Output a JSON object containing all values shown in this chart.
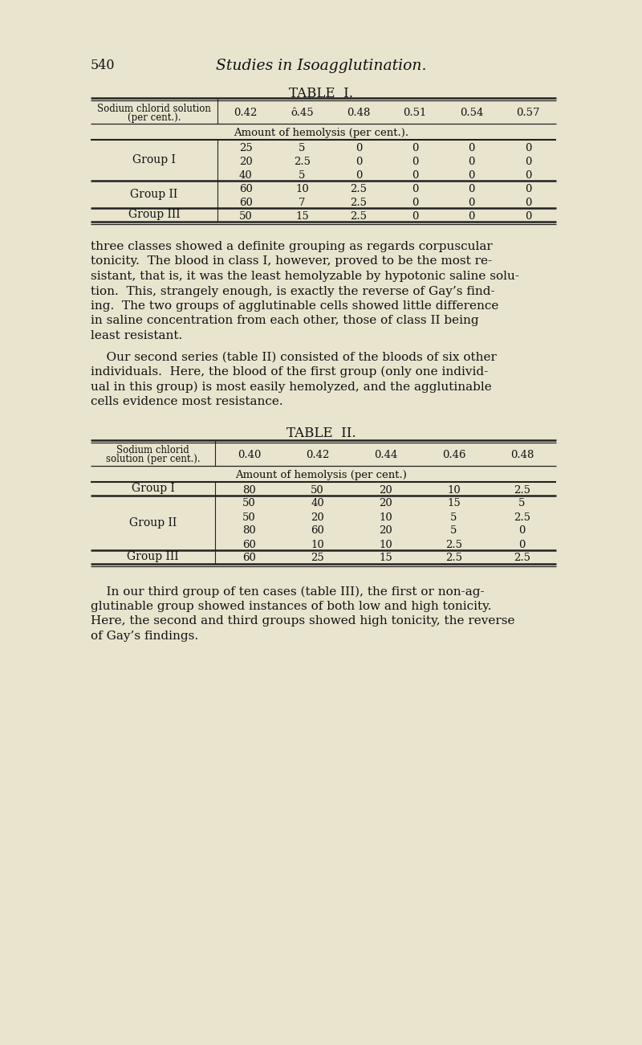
{
  "bg_color": "#e8e4ce",
  "page_num": "540",
  "page_title": "Studies in Isoagglutination.",
  "table1_title": "TABLE  I.",
  "table1_header_vals": [
    "0.42",
    "ô.45",
    "0.48",
    "0.51",
    "0.54",
    "0.57"
  ],
  "table1_subheader": "Amount of hemolysis (per cent.).",
  "table1_groups": [
    {
      "name": "Group I",
      "rows": [
        [
          "25",
          "5",
          "0",
          "0",
          "0",
          "0"
        ],
        [
          "20",
          "2.5",
          "0",
          "0",
          "0",
          "0"
        ],
        [
          "40",
          "5",
          "0",
          "0",
          "0",
          "0"
        ]
      ]
    },
    {
      "name": "Group II",
      "rows": [
        [
          "60",
          "10",
          "2.5",
          "0",
          "0",
          "0"
        ],
        [
          "60",
          "7",
          "2.5",
          "0",
          "0",
          "0"
        ]
      ]
    },
    {
      "name": "Group III",
      "rows": [
        [
          "50",
          "15",
          "2.5",
          "0",
          "0",
          "0"
        ]
      ]
    }
  ],
  "table2_title": "TABLE  II.",
  "table2_header_vals": [
    "0.40",
    "0.42",
    "0.44",
    "0.46",
    "0.48"
  ],
  "table2_subheader": "Amount of hemolysis (per cent.)",
  "table2_groups": [
    {
      "name": "Group I",
      "rows": [
        [
          "80",
          "50",
          "20",
          "10",
          "2.5"
        ]
      ]
    },
    {
      "name": "Group II",
      "rows": [
        [
          "50",
          "40",
          "20",
          "15",
          "5"
        ],
        [
          "50",
          "20",
          "10",
          "5",
          "2.5"
        ],
        [
          "80",
          "60",
          "20",
          "5",
          "0"
        ],
        [
          "60",
          "10",
          "10",
          "2.5",
          "0"
        ]
      ]
    },
    {
      "name": "Group III",
      "rows": [
        [
          "60",
          "25",
          "15",
          "2.5",
          "2.5"
        ]
      ]
    }
  ],
  "para1_lines": [
    "three classes showed a definite grouping as regards corpuscular",
    "tonicity.  The blood in class I, however, proved to be the most re-",
    "sistant, that is, it was the least hemolyzable by hypotonic saline solu-",
    "tion.  This, strangely enough, is exactly the reverse of Gay’s find-",
    "ing.  The two groups of agglutinable cells showed little difference",
    "in saline concentration from each other, those of class II being",
    "least resistant."
  ],
  "para2_lines": [
    "    Our second series (table II) consisted of the bloods of six other",
    "individuals.  Here, the blood of the first group (only one individ-",
    "ual in this group) is most easily hemolyzed, and the agglutinable",
    "cells evidence most resistance."
  ],
  "para3_lines": [
    "    In our third group of ten cases (table III), the first or non-ag-",
    "glutinable group showed instances of both low and high tonicity.",
    "Here, the second and third groups showed high tonicity, the reverse",
    "of Gay’s findings."
  ]
}
